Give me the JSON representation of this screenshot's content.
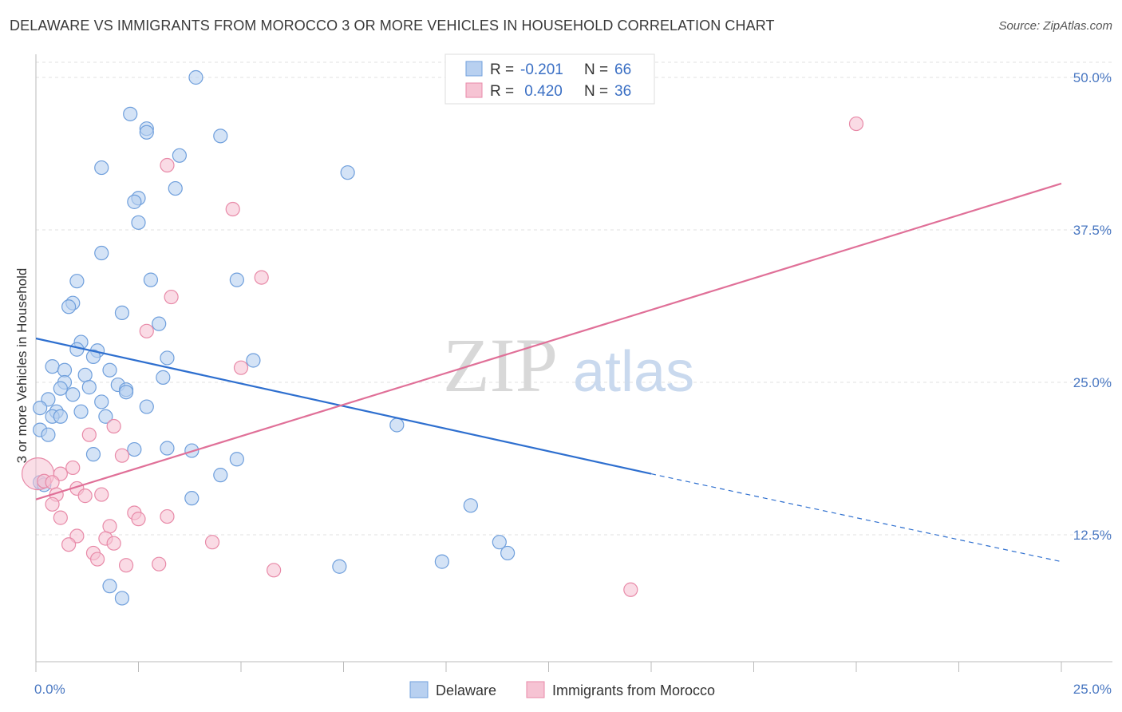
{
  "title": "DELAWARE VS IMMIGRANTS FROM MOROCCO 3 OR MORE VEHICLES IN HOUSEHOLD CORRELATION CHART",
  "source": "Source: ZipAtlas.com",
  "watermark": {
    "zip": "ZIP",
    "atlas": "atlas"
  },
  "stats": [
    {
      "r_label": "R =",
      "r_value": "-0.201",
      "n_label": "N =",
      "n_value": "66"
    },
    {
      "r_label": "R =",
      "r_value": " 0.420",
      "n_label": "N =",
      "n_value": "36"
    }
  ],
  "chart_data": {
    "type": "scatter",
    "title": "DELAWARE VS IMMIGRANTS FROM MOROCCO 3 OR MORE VEHICLES IN HOUSEHOLD CORRELATION CHART",
    "xlabel": "",
    "ylabel": "3 or more Vehicles in Household",
    "xlim": [
      0,
      25
    ],
    "ylim": [
      0,
      52
    ],
    "x_tick_labels": [
      "0.0%",
      "25.0%"
    ],
    "y_ticks": [
      12.5,
      25.0,
      37.5,
      50.0
    ],
    "y_tick_labels": [
      "12.5%",
      "25.0%",
      "37.5%",
      "50.0%"
    ],
    "grid": true,
    "legend_position": "bottom-center",
    "colors": {
      "blue_fill": "#b8d0f0",
      "blue_stroke": "#6f9fdc",
      "blue_line": "#2e6fcf",
      "pink_fill": "#f6c3d3",
      "pink_stroke": "#e88aa8",
      "pink_line": "#e07098"
    },
    "series": [
      {
        "name": "Delaware",
        "color": "blue",
        "trend": {
          "x0": 0,
          "y0": 28.6,
          "x1": 15,
          "y1": 17.5,
          "dash_to": 25,
          "dash_y": 10.3
        },
        "points": [
          [
            3.9,
            50.0
          ],
          [
            2.3,
            47.0
          ],
          [
            2.7,
            45.8
          ],
          [
            2.7,
            45.5
          ],
          [
            4.5,
            45.2
          ],
          [
            3.5,
            43.6
          ],
          [
            1.6,
            42.6
          ],
          [
            7.6,
            42.2
          ],
          [
            3.4,
            40.9
          ],
          [
            2.5,
            40.1
          ],
          [
            2.4,
            39.8
          ],
          [
            2.5,
            38.1
          ],
          [
            1.6,
            35.6
          ],
          [
            1.0,
            33.3
          ],
          [
            2.8,
            33.4
          ],
          [
            4.9,
            33.4
          ],
          [
            0.9,
            31.5
          ],
          [
            0.8,
            31.2
          ],
          [
            2.1,
            30.7
          ],
          [
            3.0,
            29.8
          ],
          [
            1.1,
            28.3
          ],
          [
            1.0,
            27.7
          ],
          [
            1.5,
            27.6
          ],
          [
            1.4,
            27.1
          ],
          [
            3.2,
            27.0
          ],
          [
            5.3,
            26.8
          ],
          [
            0.4,
            26.3
          ],
          [
            0.7,
            26.0
          ],
          [
            1.8,
            26.0
          ],
          [
            1.2,
            25.6
          ],
          [
            3.1,
            25.4
          ],
          [
            0.7,
            25.0
          ],
          [
            2.0,
            24.8
          ],
          [
            1.3,
            24.6
          ],
          [
            0.6,
            24.5
          ],
          [
            2.2,
            24.4
          ],
          [
            2.2,
            24.2
          ],
          [
            0.9,
            24.0
          ],
          [
            0.3,
            23.6
          ],
          [
            1.6,
            23.4
          ],
          [
            2.7,
            23.0
          ],
          [
            0.1,
            22.9
          ],
          [
            0.5,
            22.6
          ],
          [
            1.1,
            22.6
          ],
          [
            0.4,
            22.2
          ],
          [
            0.6,
            22.2
          ],
          [
            1.7,
            22.2
          ],
          [
            8.8,
            21.5
          ],
          [
            0.1,
            21.1
          ],
          [
            0.3,
            20.7
          ],
          [
            2.4,
            19.5
          ],
          [
            3.2,
            19.6
          ],
          [
            3.8,
            19.4
          ],
          [
            1.4,
            19.1
          ],
          [
            4.9,
            18.7
          ],
          [
            4.5,
            17.4
          ],
          [
            0.1,
            16.8
          ],
          [
            0.2,
            16.6
          ],
          [
            3.8,
            15.5
          ],
          [
            10.6,
            14.9
          ],
          [
            11.3,
            11.9
          ],
          [
            11.5,
            11.0
          ],
          [
            7.4,
            9.9
          ],
          [
            9.9,
            10.3
          ],
          [
            1.8,
            8.3
          ],
          [
            2.1,
            7.3
          ]
        ]
      },
      {
        "name": "Immigrants from Morocco",
        "color": "pink",
        "trend": {
          "x0": 0,
          "y0": 15.4,
          "x1": 25,
          "y1": 41.3
        },
        "points": [
          [
            0.05,
            17.5
          ],
          [
            20.0,
            46.2
          ],
          [
            3.2,
            42.8
          ],
          [
            4.8,
            39.2
          ],
          [
            5.5,
            33.6
          ],
          [
            3.3,
            32.0
          ],
          [
            2.7,
            29.2
          ],
          [
            5.0,
            26.2
          ],
          [
            1.9,
            21.4
          ],
          [
            1.3,
            20.7
          ],
          [
            2.1,
            19.0
          ],
          [
            0.9,
            18.0
          ],
          [
            0.6,
            17.5
          ],
          [
            0.2,
            16.9
          ],
          [
            0.4,
            16.8
          ],
          [
            1.0,
            16.3
          ],
          [
            1.6,
            15.8
          ],
          [
            0.5,
            15.8
          ],
          [
            1.2,
            15.7
          ],
          [
            0.4,
            15.0
          ],
          [
            2.4,
            14.3
          ],
          [
            3.2,
            14.0
          ],
          [
            0.6,
            13.9
          ],
          [
            2.5,
            13.8
          ],
          [
            1.8,
            13.2
          ],
          [
            1.0,
            12.4
          ],
          [
            1.7,
            12.2
          ],
          [
            4.3,
            11.9
          ],
          [
            0.8,
            11.7
          ],
          [
            1.9,
            11.8
          ],
          [
            1.4,
            11.0
          ],
          [
            1.5,
            10.5
          ],
          [
            2.2,
            10.0
          ],
          [
            3.0,
            10.1
          ],
          [
            5.8,
            9.6
          ],
          [
            14.5,
            8.0
          ]
        ]
      }
    ]
  }
}
